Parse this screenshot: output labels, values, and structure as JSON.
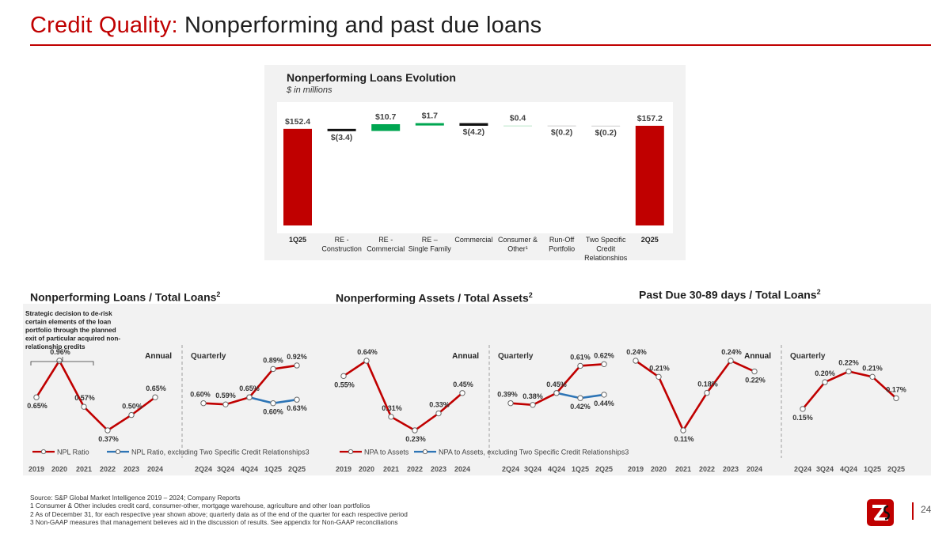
{
  "page": {
    "title_accent": "Credit Quality:",
    "title_rest": " Nonperforming and past due loans",
    "page_number": "24",
    "brand_colors": {
      "red": "#c00000",
      "green": "#00a651",
      "blue": "#2e75b6",
      "black": "#111111"
    }
  },
  "waterfall": {
    "title": "Nonperforming Loans Evolution",
    "subtitle": "$ in millions",
    "chart_data": {
      "type": "bar",
      "subtype": "waterfall",
      "unit": "$ in millions",
      "steps": [
        {
          "label": [
            "1Q25"
          ],
          "bold": true,
          "kind": "total",
          "value": 152.4,
          "value_label": "$152.4"
        },
        {
          "label": [
            "RE -",
            "Construction"
          ],
          "kind": "decrease",
          "value": -3.4,
          "value_label": "$(3.4)"
        },
        {
          "label": [
            "RE -",
            "Commercial"
          ],
          "kind": "increase",
          "value": 10.7,
          "value_label": "$10.7"
        },
        {
          "label": [
            "RE –",
            "Single Family"
          ],
          "kind": "increase",
          "value": 1.7,
          "value_label": "$1.7"
        },
        {
          "label": [
            "Commercial"
          ],
          "kind": "decrease",
          "value": -4.2,
          "value_label": "$(4.2)"
        },
        {
          "label": [
            "Consumer &",
            "Other¹"
          ],
          "kind": "increase",
          "value": 0.4,
          "value_label": "$0.4"
        },
        {
          "label": [
            "Run-Off",
            "Portfolio"
          ],
          "kind": "decrease",
          "value": -0.2,
          "value_label": "$(0.2)"
        },
        {
          "label": [
            "Two Specific",
            "Credit",
            "Relationships"
          ],
          "kind": "decrease",
          "value": -0.2,
          "value_label": "$(0.2)"
        },
        {
          "label": [
            "2Q25"
          ],
          "bold": true,
          "kind": "total",
          "value": 157.2,
          "value_label": "$157.2"
        }
      ]
    }
  },
  "panels": [
    {
      "title": "Nonperforming Loans / Total Loans",
      "title_sup": "2",
      "note": [
        "Strategic decision to de-risk",
        "certain elements of the loan",
        "portfolio through the planned",
        "exit of particular acquired non-",
        "relationship credits"
      ],
      "annual_label": "Annual",
      "quarterly_label": "Quarterly",
      "chart_data": {
        "type": "line",
        "annual_x": [
          "2019",
          "2020",
          "2021",
          "2022",
          "2023",
          "2024"
        ],
        "quarterly_x": [
          "2Q24",
          "3Q24",
          "4Q24",
          "1Q25",
          "2Q25"
        ],
        "y_unit": "%",
        "series": [
          {
            "name": "NPL Ratio",
            "color": "#c00000",
            "annual": [
              0.65,
              0.96,
              0.57,
              0.37,
              0.5,
              0.65
            ],
            "annual_labels": [
              "0.65%",
              "0.96%",
              "0.57%",
              "0.37%",
              "0.50%",
              "0.65%"
            ],
            "quarterly": [
              0.6,
              0.59,
              0.65,
              0.89,
              0.92
            ],
            "quarterly_labels": [
              "0.60%",
              "0.59%",
              "0.65%",
              "0.89%",
              "0.92%"
            ]
          },
          {
            "name": "NPL Ratio, excluding Two Specific Credit Relationships3",
            "color": "#2e75b6",
            "quarterly_offset": 2,
            "quarterly": [
              0.65,
              0.6,
              0.63
            ],
            "quarterly_labels": [
              "",
              "0.60%",
              "0.63%"
            ]
          }
        ]
      }
    },
    {
      "title": "Nonperforming Assets / Total Assets",
      "title_sup": "2",
      "annual_label": "Annual",
      "quarterly_label": "Quarterly",
      "chart_data": {
        "type": "line",
        "annual_x": [
          "2019",
          "2020",
          "2021",
          "2022",
          "2023",
          "2024"
        ],
        "quarterly_x": [
          "2Q24",
          "3Q24",
          "4Q24",
          "1Q25",
          "2Q25"
        ],
        "y_unit": "%",
        "series": [
          {
            "name": "NPA to Assets",
            "color": "#c00000",
            "annual": [
              0.55,
              0.64,
              0.31,
              0.23,
              0.33,
              0.45
            ],
            "annual_labels": [
              "0.55%",
              "0.64%",
              "0.31%",
              "0.23%",
              "0.33%",
              "0.45%"
            ],
            "quarterly": [
              0.39,
              0.38,
              0.45,
              0.61,
              0.62
            ],
            "quarterly_labels": [
              "0.39%",
              "0.38%",
              "0.45%",
              "0.61%",
              "0.62%"
            ]
          },
          {
            "name": "NPA to Assets, excluding Two Specific Credit Relationships3",
            "color": "#2e75b6",
            "quarterly_offset": 2,
            "quarterly": [
              0.45,
              0.42,
              0.44
            ],
            "quarterly_labels": [
              "",
              "0.42%",
              "0.44%"
            ]
          }
        ]
      }
    },
    {
      "title": "Past Due 30-89 days / Total Loans",
      "title_sup": "2",
      "annual_label": "Annual",
      "quarterly_label": "Quarterly",
      "chart_data": {
        "type": "line",
        "annual_x": [
          "2019",
          "2020",
          "2021",
          "2022",
          "2023",
          "2024"
        ],
        "quarterly_x": [
          "2Q24",
          "3Q24",
          "4Q24",
          "1Q25",
          "2Q25"
        ],
        "y_unit": "%",
        "series": [
          {
            "name": "Past Due 30-89 days / Total Loans",
            "color": "#c00000",
            "annual": [
              0.24,
              0.21,
              0.11,
              0.18,
              0.24,
              0.22
            ],
            "annual_labels": [
              "0.24%",
              "0.21%",
              "0.11%",
              "0.18%",
              "0.24%",
              "0.22%"
            ],
            "quarterly": [
              0.15,
              0.2,
              0.22,
              0.21,
              0.17
            ],
            "quarterly_labels": [
              "0.15%",
              "0.20%",
              "0.22%",
              "0.21%",
              "0.17%"
            ]
          }
        ]
      }
    }
  ],
  "footnotes": [
    "Source: S&P Global Market Intelligence 2019 – 2024; Company Reports",
    "1  Consumer & Other includes credit card, consumer-other,  mortgage warehouse, agriculture and other loan portfolios",
    "2  As of December 31, for each respective year shown above; quarterly data as of the end of the quarter for each respective period",
    "3  Non-GAAP measures that management believes aid in the discussion of results. See appendix for Non-GAAP reconciliations"
  ]
}
